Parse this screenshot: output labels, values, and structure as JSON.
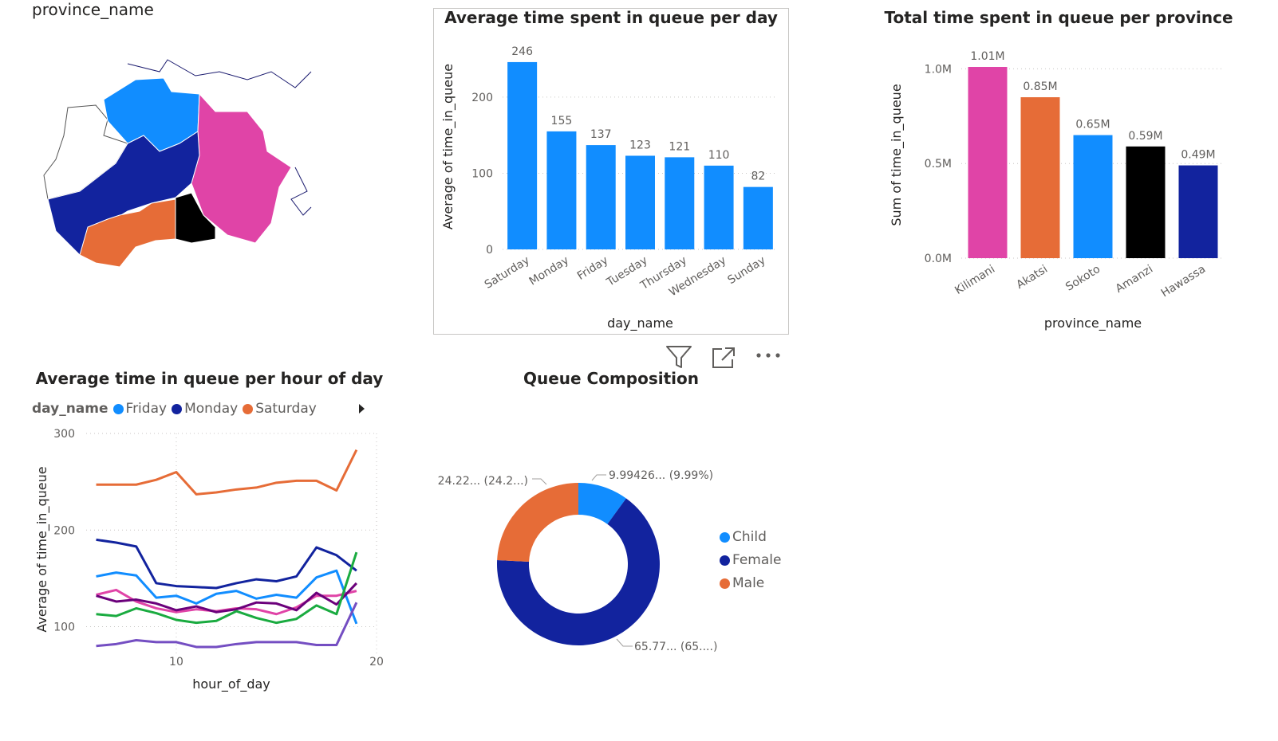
{
  "map": {
    "title": "province_name",
    "regions": [
      {
        "name": "Kilimani",
        "color": "#E044A7"
      },
      {
        "name": "Akatsi",
        "color": "#E66C37"
      },
      {
        "name": "Sokoto",
        "color": "#118DFF"
      },
      {
        "name": "Amanzi",
        "color": "#000000"
      },
      {
        "name": "Hawassa",
        "color": "#12239E"
      }
    ]
  },
  "header_icons": [
    "filter-icon",
    "focus-mode-icon",
    "more-options-icon"
  ],
  "chart_data": [
    {
      "id": "avg_day",
      "type": "bar",
      "title": "Average time spent in queue per day",
      "xlabel": "day_name",
      "ylabel": "Average of time_in_queue",
      "categories": [
        "Saturday",
        "Monday",
        "Friday",
        "Tuesday",
        "Thursday",
        "Wednesday",
        "Sunday"
      ],
      "values": [
        246,
        155,
        137,
        123,
        121,
        110,
        82
      ],
      "data_labels": [
        "246",
        "155",
        "137",
        "123",
        "121",
        "110",
        "82"
      ],
      "ylim": [
        0,
        270
      ],
      "yticks": [
        0,
        100,
        200
      ],
      "ytick_labels": [
        "0",
        "100",
        "200"
      ],
      "grid": true,
      "color": "#118DFF"
    },
    {
      "id": "total_province",
      "type": "bar",
      "title": "Total time spent in queue per province",
      "xlabel": "province_name",
      "ylabel": "Sum of time_in_queue",
      "categories": [
        "Kilimani",
        "Akatsi",
        "Sokoto",
        "Amanzi",
        "Hawassa"
      ],
      "values": [
        1010000,
        850000,
        650000,
        590000,
        490000
      ],
      "data_labels": [
        "1.01M",
        "0.85M",
        "0.65M",
        "0.59M",
        "0.49M"
      ],
      "colors": [
        "#E044A7",
        "#E66C37",
        "#118DFF",
        "#000000",
        "#12239E"
      ],
      "ylim": [
        0,
        1090000
      ],
      "yticks": [
        0,
        500000,
        1000000
      ],
      "ytick_labels": [
        "0.0M",
        "0.5M",
        "1.0M"
      ],
      "grid": true
    },
    {
      "id": "avg_hour",
      "type": "line",
      "title": "Average time in queue per hour of day",
      "xlabel": "hour_of_day",
      "ylabel": "Average of time_in_queue",
      "legend_title": "day_name",
      "legend": [
        {
          "name": "Friday",
          "color": "#118DFF"
        },
        {
          "name": "Monday",
          "color": "#12239E"
        },
        {
          "name": "Saturday",
          "color": "#E66C37"
        }
      ],
      "x": [
        6,
        7,
        8,
        9,
        10,
        11,
        12,
        13,
        14,
        15,
        16,
        17,
        18,
        19
      ],
      "xlim": [
        5.5,
        20
      ],
      "xticks": [
        10,
        20
      ],
      "ylim": [
        60,
        300
      ],
      "yticks": [
        100,
        200,
        300
      ],
      "grid": true,
      "series": [
        {
          "name": "Saturday",
          "color": "#E66C37",
          "values": [
            247,
            247,
            247,
            252,
            260,
            237,
            239,
            242,
            244,
            249,
            251,
            251,
            241,
            283
          ]
        },
        {
          "name": "Monday",
          "color": "#12239E",
          "values": [
            190,
            187,
            183,
            145,
            142,
            141,
            140,
            145,
            149,
            147,
            152,
            182,
            174,
            158
          ]
        },
        {
          "name": "Friday",
          "color": "#118DFF",
          "values": [
            152,
            156,
            153,
            130,
            132,
            124,
            134,
            137,
            129,
            133,
            130,
            151,
            158,
            103
          ]
        },
        {
          "color": "#E044A7",
          "values": [
            133,
            138,
            126,
            119,
            115,
            118,
            116,
            119,
            118,
            113,
            120,
            132,
            132,
            137
          ]
        },
        {
          "color": "#6B007B",
          "values": [
            132,
            126,
            128,
            124,
            117,
            121,
            115,
            118,
            125,
            124,
            117,
            135,
            123,
            145
          ]
        },
        {
          "color": "#1AAB40",
          "values": [
            113,
            111,
            119,
            114,
            107,
            104,
            106,
            116,
            109,
            104,
            108,
            122,
            113,
            177
          ]
        },
        {
          "color": "#744EC2",
          "values": [
            80,
            82,
            86,
            84,
            84,
            79,
            79,
            82,
            84,
            84,
            84,
            81,
            81,
            125
          ]
        }
      ]
    },
    {
      "id": "composition",
      "type": "pie",
      "title": "Queue Composition",
      "labels": [
        "Child",
        "Female",
        "Male"
      ],
      "values": [
        9.99,
        65.77,
        24.22
      ],
      "colors": [
        "#118DFF",
        "#12239E",
        "#E66C37"
      ],
      "data_labels": [
        "9.99426... (9.99%)",
        "65.77... (65....)",
        "24.22... (24.2...)"
      ]
    }
  ]
}
